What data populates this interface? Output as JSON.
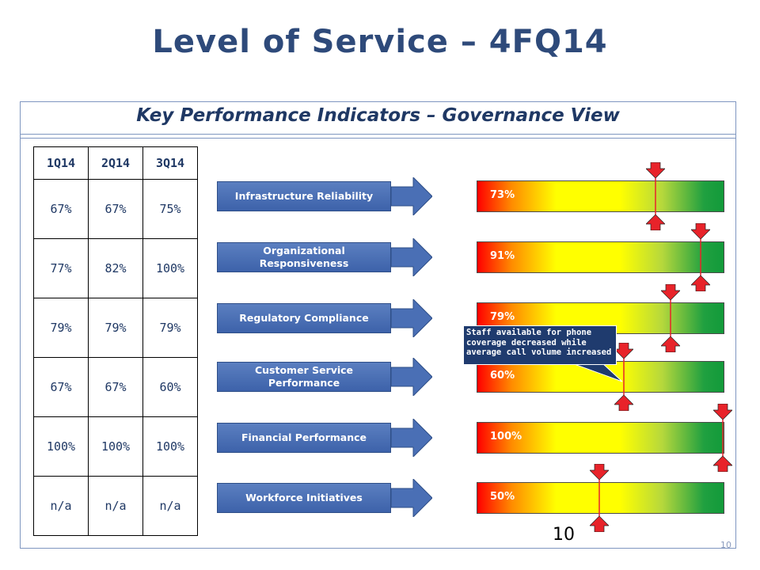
{
  "title": "Level of Service – 4FQ14",
  "subtitle": "Key Performance Indicators – Governance View",
  "table": {
    "headers": [
      "1Q14",
      "2Q14",
      "3Q14"
    ],
    "rows": [
      [
        "67%",
        "67%",
        "75%"
      ],
      [
        "77%",
        "82%",
        "100%"
      ],
      [
        "79%",
        "79%",
        "79%"
      ],
      [
        "67%",
        "67%",
        "60%"
      ],
      [
        "100%",
        "100%",
        "100%"
      ],
      [
        "n/a",
        "n/a",
        "n/a"
      ]
    ]
  },
  "kpis": [
    {
      "label": "Infrastructure Reliability",
      "value_label": "73%",
      "level": 0.73
    },
    {
      "label": "Organizational Responsiveness",
      "value_label": "91%",
      "level": 0.91
    },
    {
      "label": "Regulatory Compliance",
      "value_label": "79%",
      "level": 0.79
    },
    {
      "label": "Customer Service Performance",
      "value_label": "60%",
      "level": 0.6
    },
    {
      "label": "Financial Performance",
      "value_label": "100%",
      "level": 1.0
    },
    {
      "label": "Workforce Initiatives",
      "value_label": "50%",
      "level": 0.5
    }
  ],
  "callout": "Staff available for phone coverage decreased while average call volume increased",
  "footer_number": "10",
  "slide_number": "10",
  "colors": {
    "title": "#2e4a7a",
    "kpi_box": "#4a6fb5",
    "marker": "#e8232a",
    "gauge_low": "#ff0000",
    "gauge_mid": "#ffff00",
    "gauge_high": "#129a3a"
  }
}
